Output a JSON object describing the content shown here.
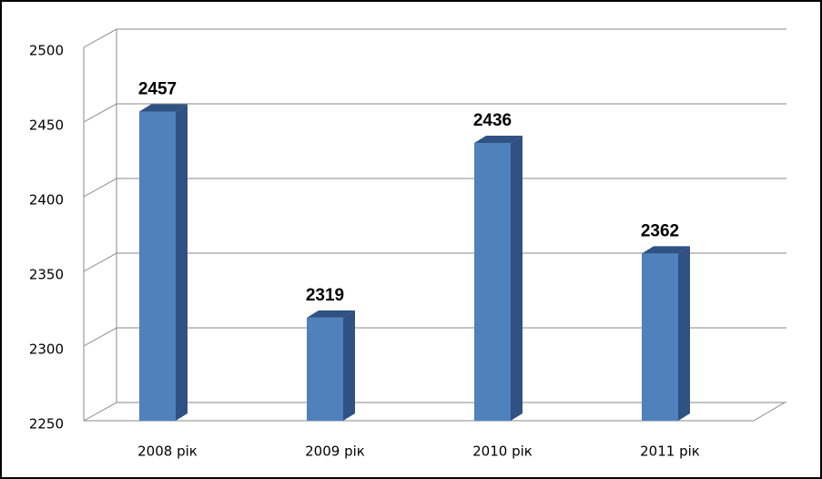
{
  "chart_data": {
    "type": "bar3d",
    "categories": [
      "2008 рік",
      "2009 рік",
      "2010 рік",
      "2011 рік"
    ],
    "values": [
      2457,
      2319,
      2436,
      2362
    ],
    "color": "#4f81bd",
    "side_color": "#2f5283",
    "ylim": [
      2250,
      2500
    ],
    "yticks": [
      2250,
      2300,
      2350,
      2400,
      2450,
      2500
    ],
    "grid": true
  }
}
